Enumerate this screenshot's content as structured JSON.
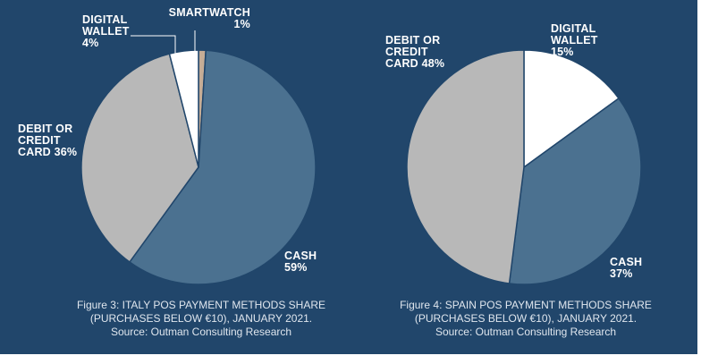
{
  "chart_data": [
    {
      "type": "pie",
      "slices": [
        {
          "label_lines": [
            "SMARTWATCH",
            "1%"
          ],
          "value": 1,
          "color": "#c6ad96"
        },
        {
          "label_lines": [
            "CASH",
            "59%"
          ],
          "value": 59,
          "color": "#4b7190"
        },
        {
          "label_lines": [
            "DEBIT OR",
            "CREDIT",
            "CARD 36%"
          ],
          "value": 36,
          "color": "#b8b8b8"
        },
        {
          "label_lines": [
            "DIGITAL",
            "WALLET",
            "4%"
          ],
          "value": 4,
          "color": "#ffffff"
        }
      ],
      "caption": [
        "Figure 3: ITALY POS PAYMENT METHODS SHARE",
        "(PURCHASES BELOW €10), JANUARY 2021.",
        "Source: Outman Consulting Research"
      ]
    },
    {
      "type": "pie",
      "slices": [
        {
          "label_lines": [
            "DIGITAL",
            "WALLET",
            "15%"
          ],
          "value": 15,
          "color": "#ffffff"
        },
        {
          "label_lines": [
            "CASH",
            "37%"
          ],
          "value": 37,
          "color": "#4b7190"
        },
        {
          "label_lines": [
            "DEBIT OR",
            "CREDIT",
            "CARD 48%"
          ],
          "value": 48,
          "color": "#b8b8b8"
        }
      ],
      "caption": [
        "Figure 4: SPAIN POS PAYMENT METHODS SHARE",
        "(PURCHASES BELOW €10), JANUARY 2021.",
        "Source: Outman Consulting Research"
      ]
    }
  ],
  "colors": {
    "background": "#21466b",
    "cash": "#4b7190",
    "card": "#b8b8b8",
    "digital_wallet": "#ffffff",
    "smartwatch": "#c6ad96"
  }
}
